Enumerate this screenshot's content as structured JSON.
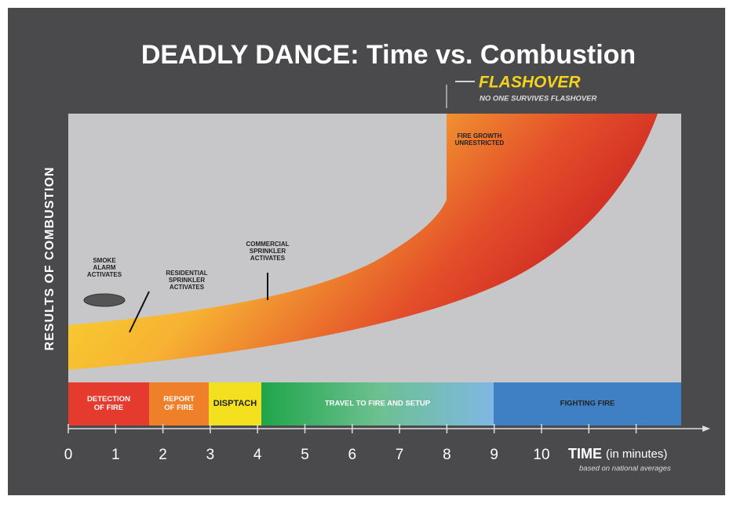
{
  "title": "DEADLY DANCE: Time vs. Combustion",
  "flashover": {
    "label": "FLASHOVER",
    "note": "NO ONE SURVIVES FLASHOVER"
  },
  "y_axis_label": "RESULTS OF COMBUSTION",
  "annotations": [
    {
      "lines": [
        "SMOKE",
        "ALARM",
        "ACTIVATES"
      ]
    },
    {
      "lines": [
        "RESIDENTIAL",
        "SPRINKLER",
        "ACTIVATES"
      ]
    },
    {
      "lines": [
        "COMMERCIAL",
        "SPRINKLER",
        "ACTIVATES"
      ]
    },
    {
      "lines": [
        "FIRE GROWTH",
        "UNRESTRICTED"
      ]
    }
  ],
  "phases": [
    {
      "lines": [
        "DETECTION",
        "OF FIRE"
      ]
    },
    {
      "lines": [
        "REPORT",
        "OF FIRE"
      ]
    },
    {
      "lines": [
        "DISPTACH"
      ]
    },
    {
      "lines": [
        "TRAVEL TO FIRE AND SETUP"
      ]
    },
    {
      "lines": [
        "FIGHTING FIRE"
      ]
    }
  ],
  "x_ticks": [
    "0",
    "1",
    "2",
    "3",
    "4",
    "5",
    "6",
    "7",
    "8",
    "9",
    "10"
  ],
  "x_axis_label": {
    "main": "TIME",
    "unit": "(in minutes)",
    "note": "based on national averages"
  }
}
